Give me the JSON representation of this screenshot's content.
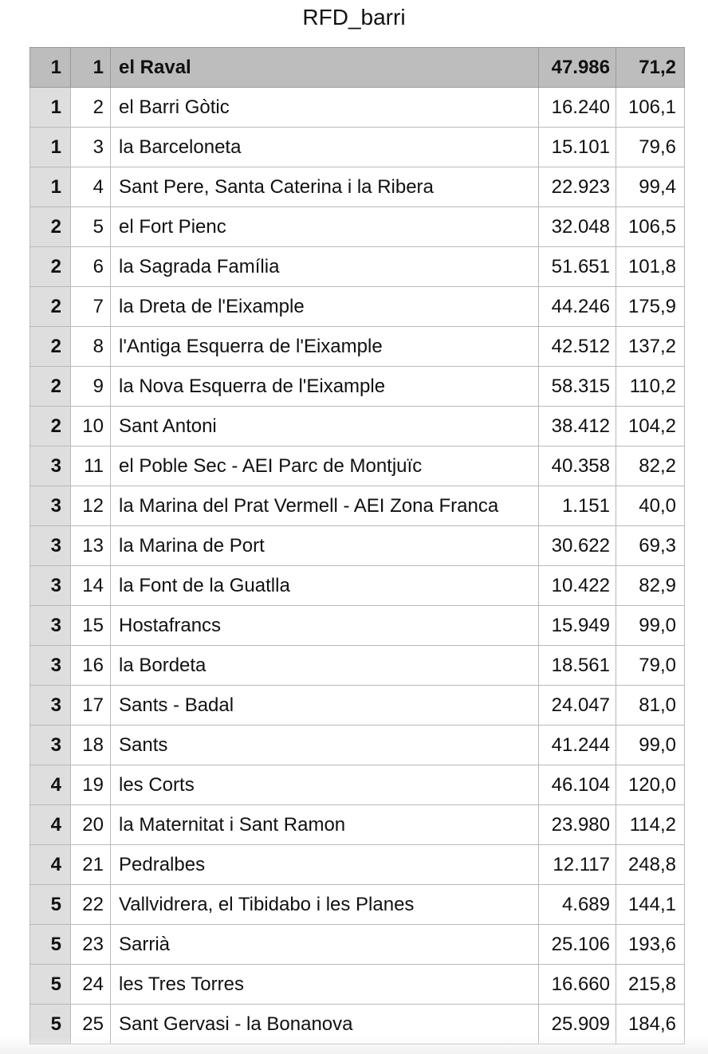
{
  "title": "RFD_barri",
  "rows": [
    {
      "district": "1",
      "num": "1",
      "name": "el Raval",
      "pop": "47.986",
      "rfd": "71,2",
      "header": true
    },
    {
      "district": "1",
      "num": "2",
      "name": "el Barri Gòtic",
      "pop": "16.240",
      "rfd": "106,1"
    },
    {
      "district": "1",
      "num": "3",
      "name": "la Barceloneta",
      "pop": "15.101",
      "rfd": "79,6"
    },
    {
      "district": "1",
      "num": "4",
      "name": "Sant Pere, Santa Caterina i la Ribera",
      "pop": "22.923",
      "rfd": "99,4"
    },
    {
      "district": "2",
      "num": "5",
      "name": "el Fort Pienc",
      "pop": "32.048",
      "rfd": "106,5"
    },
    {
      "district": "2",
      "num": "6",
      "name": "la Sagrada Família",
      "pop": "51.651",
      "rfd": "101,8"
    },
    {
      "district": "2",
      "num": "7",
      "name": "la Dreta de l'Eixample",
      "pop": "44.246",
      "rfd": "175,9"
    },
    {
      "district": "2",
      "num": "8",
      "name": "l'Antiga Esquerra de l'Eixample",
      "pop": "42.512",
      "rfd": "137,2"
    },
    {
      "district": "2",
      "num": "9",
      "name": "la Nova Esquerra de l'Eixample",
      "pop": "58.315",
      "rfd": "110,2"
    },
    {
      "district": "2",
      "num": "10",
      "name": " Sant Antoni",
      "pop": "38.412",
      "rfd": "104,2"
    },
    {
      "district": "3",
      "num": "11",
      "name": " el Poble Sec - AEI Parc de Montjuïc",
      "pop": "40.358",
      "rfd": "82,2"
    },
    {
      "district": "3",
      "num": "12",
      "name": " la Marina del Prat Vermell - AEI Zona Franca",
      "pop": "1.151",
      "rfd": "40,0"
    },
    {
      "district": "3",
      "num": "13",
      "name": " la Marina de Port",
      "pop": "30.622",
      "rfd": "69,3"
    },
    {
      "district": "3",
      "num": "14",
      "name": " la Font de la Guatlla",
      "pop": "10.422",
      "rfd": "82,9"
    },
    {
      "district": "3",
      "num": "15",
      "name": " Hostafrancs",
      "pop": "15.949",
      "rfd": "99,0"
    },
    {
      "district": "3",
      "num": "16",
      "name": " la Bordeta",
      "pop": "18.561",
      "rfd": "79,0"
    },
    {
      "district": "3",
      "num": "17",
      "name": " Sants - Badal",
      "pop": "24.047",
      "rfd": "81,0"
    },
    {
      "district": "3",
      "num": "18",
      "name": " Sants",
      "pop": "41.244",
      "rfd": "99,0"
    },
    {
      "district": "4",
      "num": "19",
      "name": " les Corts",
      "pop": "46.104",
      "rfd": "120,0"
    },
    {
      "district": "4",
      "num": "20",
      "name": " la Maternitat i Sant Ramon",
      "pop": "23.980",
      "rfd": "114,2"
    },
    {
      "district": "4",
      "num": "21",
      "name": " Pedralbes",
      "pop": "12.117",
      "rfd": "248,8"
    },
    {
      "district": "5",
      "num": "22",
      "name": " Vallvidrera, el Tibidabo i les Planes",
      "pop": "4.689",
      "rfd": "144,1"
    },
    {
      "district": "5",
      "num": "23",
      "name": " Sarrià",
      "pop": "25.106",
      "rfd": "193,6"
    },
    {
      "district": "5",
      "num": "24",
      "name": " les Tres Torres",
      "pop": "16.660",
      "rfd": "215,8"
    },
    {
      "district": "5",
      "num": "25",
      "name": " Sant Gervasi - la Bonanova",
      "pop": "25.909",
      "rfd": "184,6"
    }
  ]
}
